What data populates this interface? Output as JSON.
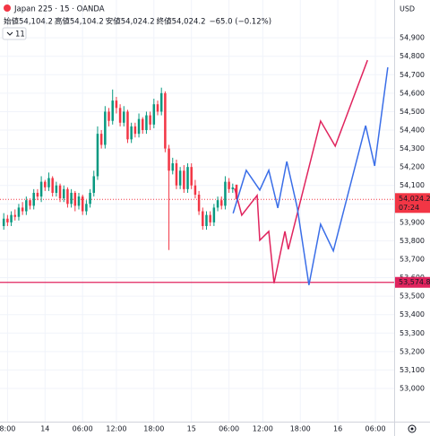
{
  "header": {
    "symbol": "Japan 225 · 15 · OANDA",
    "ohlc_labels": [
      "始値",
      "高値",
      "安値",
      "終値"
    ],
    "ohlc_values": [
      "54,104.2",
      "54,104.2",
      "54,024.2",
      "54,024.2"
    ],
    "change": "−65.0 (−0.12%)",
    "indicator_count": "11",
    "currency": "USD"
  },
  "chart_data": {
    "type": "candlestick",
    "x": [
      0,
      1,
      2,
      3,
      4,
      5,
      6,
      7,
      8,
      9,
      10,
      11,
      12,
      13,
      14,
      15,
      16,
      17,
      18,
      19,
      20,
      21,
      22,
      23,
      24,
      25,
      26,
      27,
      28,
      29,
      30,
      31,
      32,
      33,
      34,
      35,
      36,
      37,
      38,
      39,
      40,
      41,
      42,
      43,
      44,
      45,
      46,
      47,
      48,
      49,
      50,
      51,
      52,
      53,
      54,
      55,
      56,
      57,
      58,
      59,
      60,
      61,
      62
    ],
    "open": [
      53880,
      53920,
      53900,
      53940,
      53930,
      53980,
      53960,
      54020,
      53990,
      54060,
      54040,
      54120,
      54090,
      54140,
      54060,
      54100,
      54030,
      54080,
      54000,
      54060,
      53990,
      54040,
      53960,
      54000,
      54060,
      54150,
      54380,
      54320,
      54500,
      54450,
      54560,
      54520,
      54440,
      54500,
      54350,
      54420,
      54380,
      54460,
      54400,
      54480,
      54430,
      54540,
      54500,
      54600,
      54300,
      54180,
      54220,
      54100,
      54180,
      54080,
      54200,
      54100,
      54050,
      53960,
      53880,
      53940,
      53900,
      53980,
      54020,
      53990,
      54120,
      54080,
      54104.2
    ],
    "high": [
      53950,
      53940,
      53960,
      53970,
      54000,
      54010,
      54040,
      54030,
      54080,
      54080,
      54150,
      54130,
      54170,
      54150,
      54120,
      54110,
      54100,
      54090,
      54080,
      54070,
      54060,
      54050,
      54020,
      54080,
      54180,
      54420,
      54400,
      54530,
      54520,
      54620,
      54580,
      54540,
      54530,
      54510,
      54440,
      54440,
      54490,
      54470,
      54500,
      54500,
      54570,
      54560,
      54630,
      54610,
      54320,
      54250,
      54240,
      54200,
      54210,
      54220,
      54220,
      54130,
      54070,
      53980,
      53960,
      53960,
      54000,
      54040,
      54040,
      54150,
      54140,
      54110,
      54104.2
    ],
    "low": [
      53860,
      53880,
      53880,
      53910,
      53910,
      53940,
      53940,
      53970,
      53970,
      54020,
      54010,
      54070,
      54070,
      54040,
      54040,
      54010,
      54010,
      53980,
      53980,
      53960,
      53970,
      53940,
      53940,
      53980,
      54040,
      54130,
      54300,
      54300,
      54420,
      54430,
      54490,
      54420,
      54420,
      54330,
      54330,
      54360,
      54360,
      54380,
      54380,
      54400,
      54410,
      54480,
      54480,
      54280,
      53750,
      54160,
      54080,
      54080,
      54060,
      54060,
      54080,
      54030,
      53940,
      53860,
      53860,
      53880,
      53880,
      53960,
      53970,
      53970,
      54060,
      54060,
      54024.2
    ],
    "close": [
      53920,
      53900,
      53940,
      53930,
      53980,
      53960,
      54020,
      53990,
      54060,
      54040,
      54120,
      54090,
      54140,
      54060,
      54100,
      54030,
      54080,
      54000,
      54060,
      53990,
      54040,
      53960,
      54000,
      54060,
      54150,
      54380,
      54320,
      54500,
      54450,
      54560,
      54520,
      54440,
      54500,
      54350,
      54420,
      54380,
      54460,
      54400,
      54480,
      54430,
      54540,
      54500,
      54600,
      54300,
      54180,
      54220,
      54100,
      54180,
      54080,
      54200,
      54100,
      54050,
      53960,
      53880,
      53940,
      53900,
      53980,
      54020,
      53990,
      54120,
      54080,
      54089.2,
      54024.2
    ],
    "up_color": "#089981",
    "down_color": "#f23645",
    "lines": [
      {
        "color": "#e0245e",
        "x": [
          61.5,
          63.4,
          67.5,
          68.2,
          70.6,
          72.0,
          74.9,
          75.8,
          84.4,
          88.3,
          96.9
        ],
        "values": [
          54084,
          53939,
          54046,
          53803,
          53851,
          53570,
          53851,
          53754,
          54449,
          54313,
          54779
        ]
      },
      {
        "color": "#3a6ee8",
        "x": [
          61.1,
          64.6,
          68.2,
          70.6,
          73.0,
          75.4,
          78.2,
          81.3,
          84.4,
          87.8,
          96.4,
          98.8,
          102.3
        ],
        "values": [
          53949,
          54182,
          54075,
          54182,
          53978,
          54230,
          53978,
          53560,
          53890,
          53745,
          54424,
          54206,
          54740
        ]
      }
    ],
    "horizontal_line": {
      "value": 53574.8,
      "label": "53,574.8",
      "color": "#e0245e"
    },
    "last_price": {
      "value": 54024.2,
      "label": "54,024.2",
      "countdown": "07:24",
      "color": "#f23645"
    },
    "xlim": [
      -1,
      104
    ],
    "ylim": [
      52820,
      55105
    ],
    "grid": true,
    "xticks": [
      {
        "value": 1,
        "label": "8:00"
      },
      {
        "value": 11,
        "label": "14"
      },
      {
        "value": 21,
        "label": "06:00"
      },
      {
        "value": 30,
        "label": "12:00"
      },
      {
        "value": 40,
        "label": "18:00"
      },
      {
        "value": 50,
        "label": "15"
      },
      {
        "value": 60,
        "label": "06:00"
      },
      {
        "value": 69,
        "label": "12:00"
      },
      {
        "value": 79,
        "label": "18:00"
      },
      {
        "value": 89,
        "label": "16"
      },
      {
        "value": 99,
        "label": "06:00"
      }
    ],
    "yticks": [
      {
        "value": 53000,
        "label": "53,000"
      },
      {
        "value": 53100,
        "label": "53,100"
      },
      {
        "value": 53200,
        "label": "53,200"
      },
      {
        "value": 53300,
        "label": "53,300"
      },
      {
        "value": 53400,
        "label": "53,400"
      },
      {
        "value": 53500,
        "label": "53,500"
      },
      {
        "value": 53600,
        "label": "53,600"
      },
      {
        "value": 53700,
        "label": "53,700"
      },
      {
        "value": 53800,
        "label": "53,800"
      },
      {
        "value": 53900,
        "label": "53,900"
      },
      {
        "value": 54000,
        "label": "54,000"
      },
      {
        "value": 54100,
        "label": "54,100"
      },
      {
        "value": 54200,
        "label": "54,200"
      },
      {
        "value": 54300,
        "label": "54,300"
      },
      {
        "value": 54400,
        "label": "54,400"
      },
      {
        "value": 54500,
        "label": "54,500"
      },
      {
        "value": 54600,
        "label": "54,600"
      },
      {
        "value": 54700,
        "label": "54,700"
      },
      {
        "value": 54800,
        "label": "54,800"
      },
      {
        "value": 54900,
        "label": "54,900"
      }
    ]
  }
}
